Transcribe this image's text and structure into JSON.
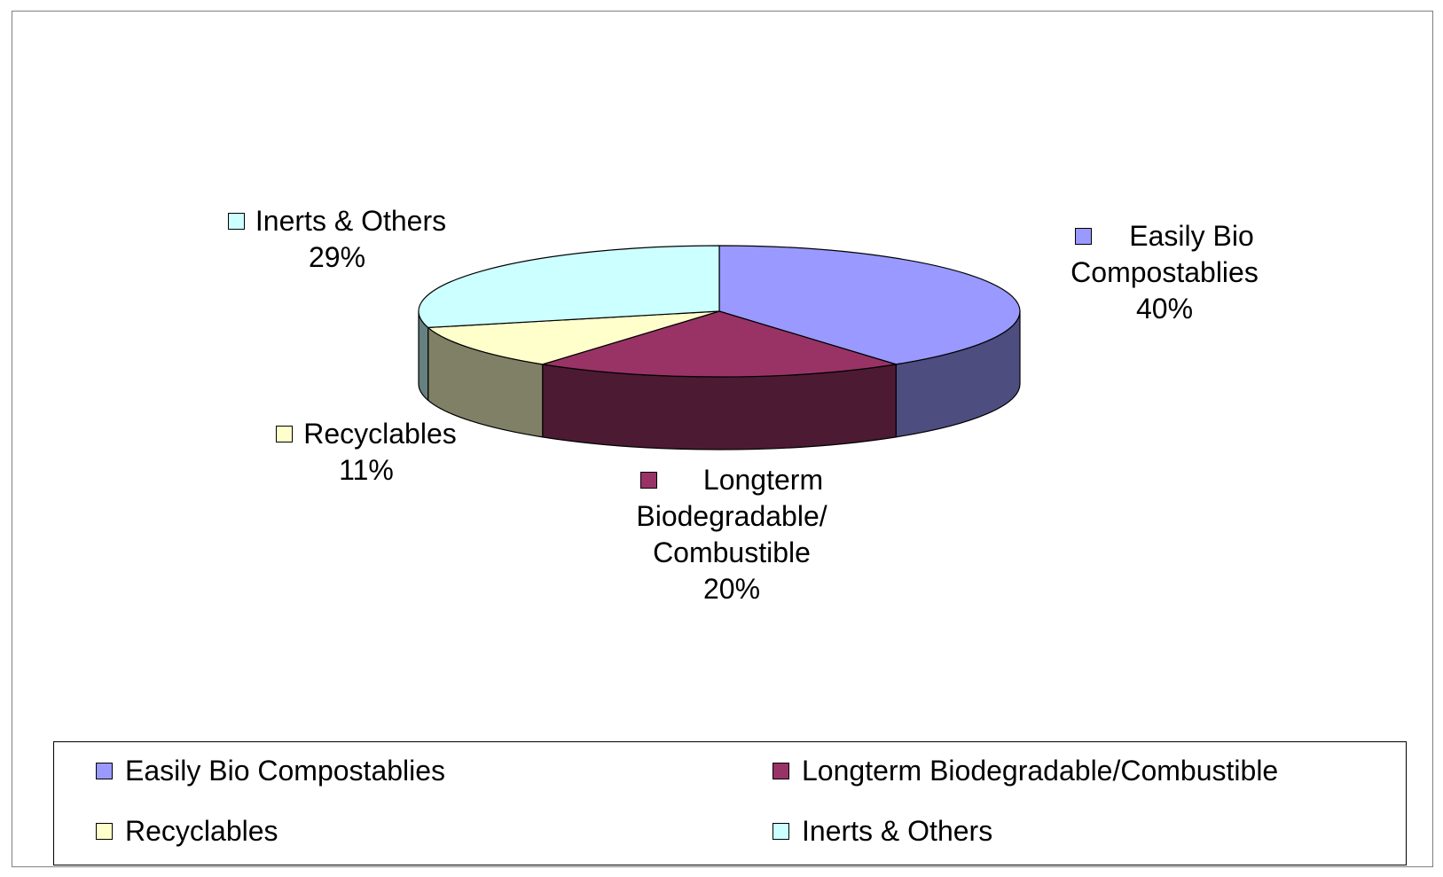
{
  "chart_data": {
    "type": "pie",
    "style": "3d",
    "title": "",
    "slices": [
      {
        "key": "easily",
        "name": "Easily Bio Compostablies",
        "label_lines": [
          "Easily Bio",
          "Compostablies"
        ],
        "value": 40,
        "pct_label": "40%",
        "color": "#9999FF",
        "side_color": "#4D4D80"
      },
      {
        "key": "longterm",
        "name": "Longterm Biodegradable/Combustible",
        "label_lines": [
          "Longterm",
          "Biodegradable/",
          "Combustible"
        ],
        "value": 20,
        "pct_label": "20%",
        "color": "#993366",
        "side_color": "#4D1A33"
      },
      {
        "key": "recyclables",
        "name": "Recyclables",
        "label_lines": [
          "Recyclables"
        ],
        "value": 11,
        "pct_label": "11%",
        "color": "#FFFFCC",
        "side_color": "#808066"
      },
      {
        "key": "inerts",
        "name": "Inerts & Others",
        "label_lines": [
          "Inerts & Others"
        ],
        "value": 29,
        "pct_label": "29%",
        "color": "#CCFFFF",
        "side_color": "#668080"
      }
    ],
    "legend": {
      "position": "bottom",
      "items": [
        "Easily Bio Compostablies",
        "Longterm Biodegradable/Combustible",
        "Recyclables",
        "Inerts & Others"
      ]
    }
  }
}
